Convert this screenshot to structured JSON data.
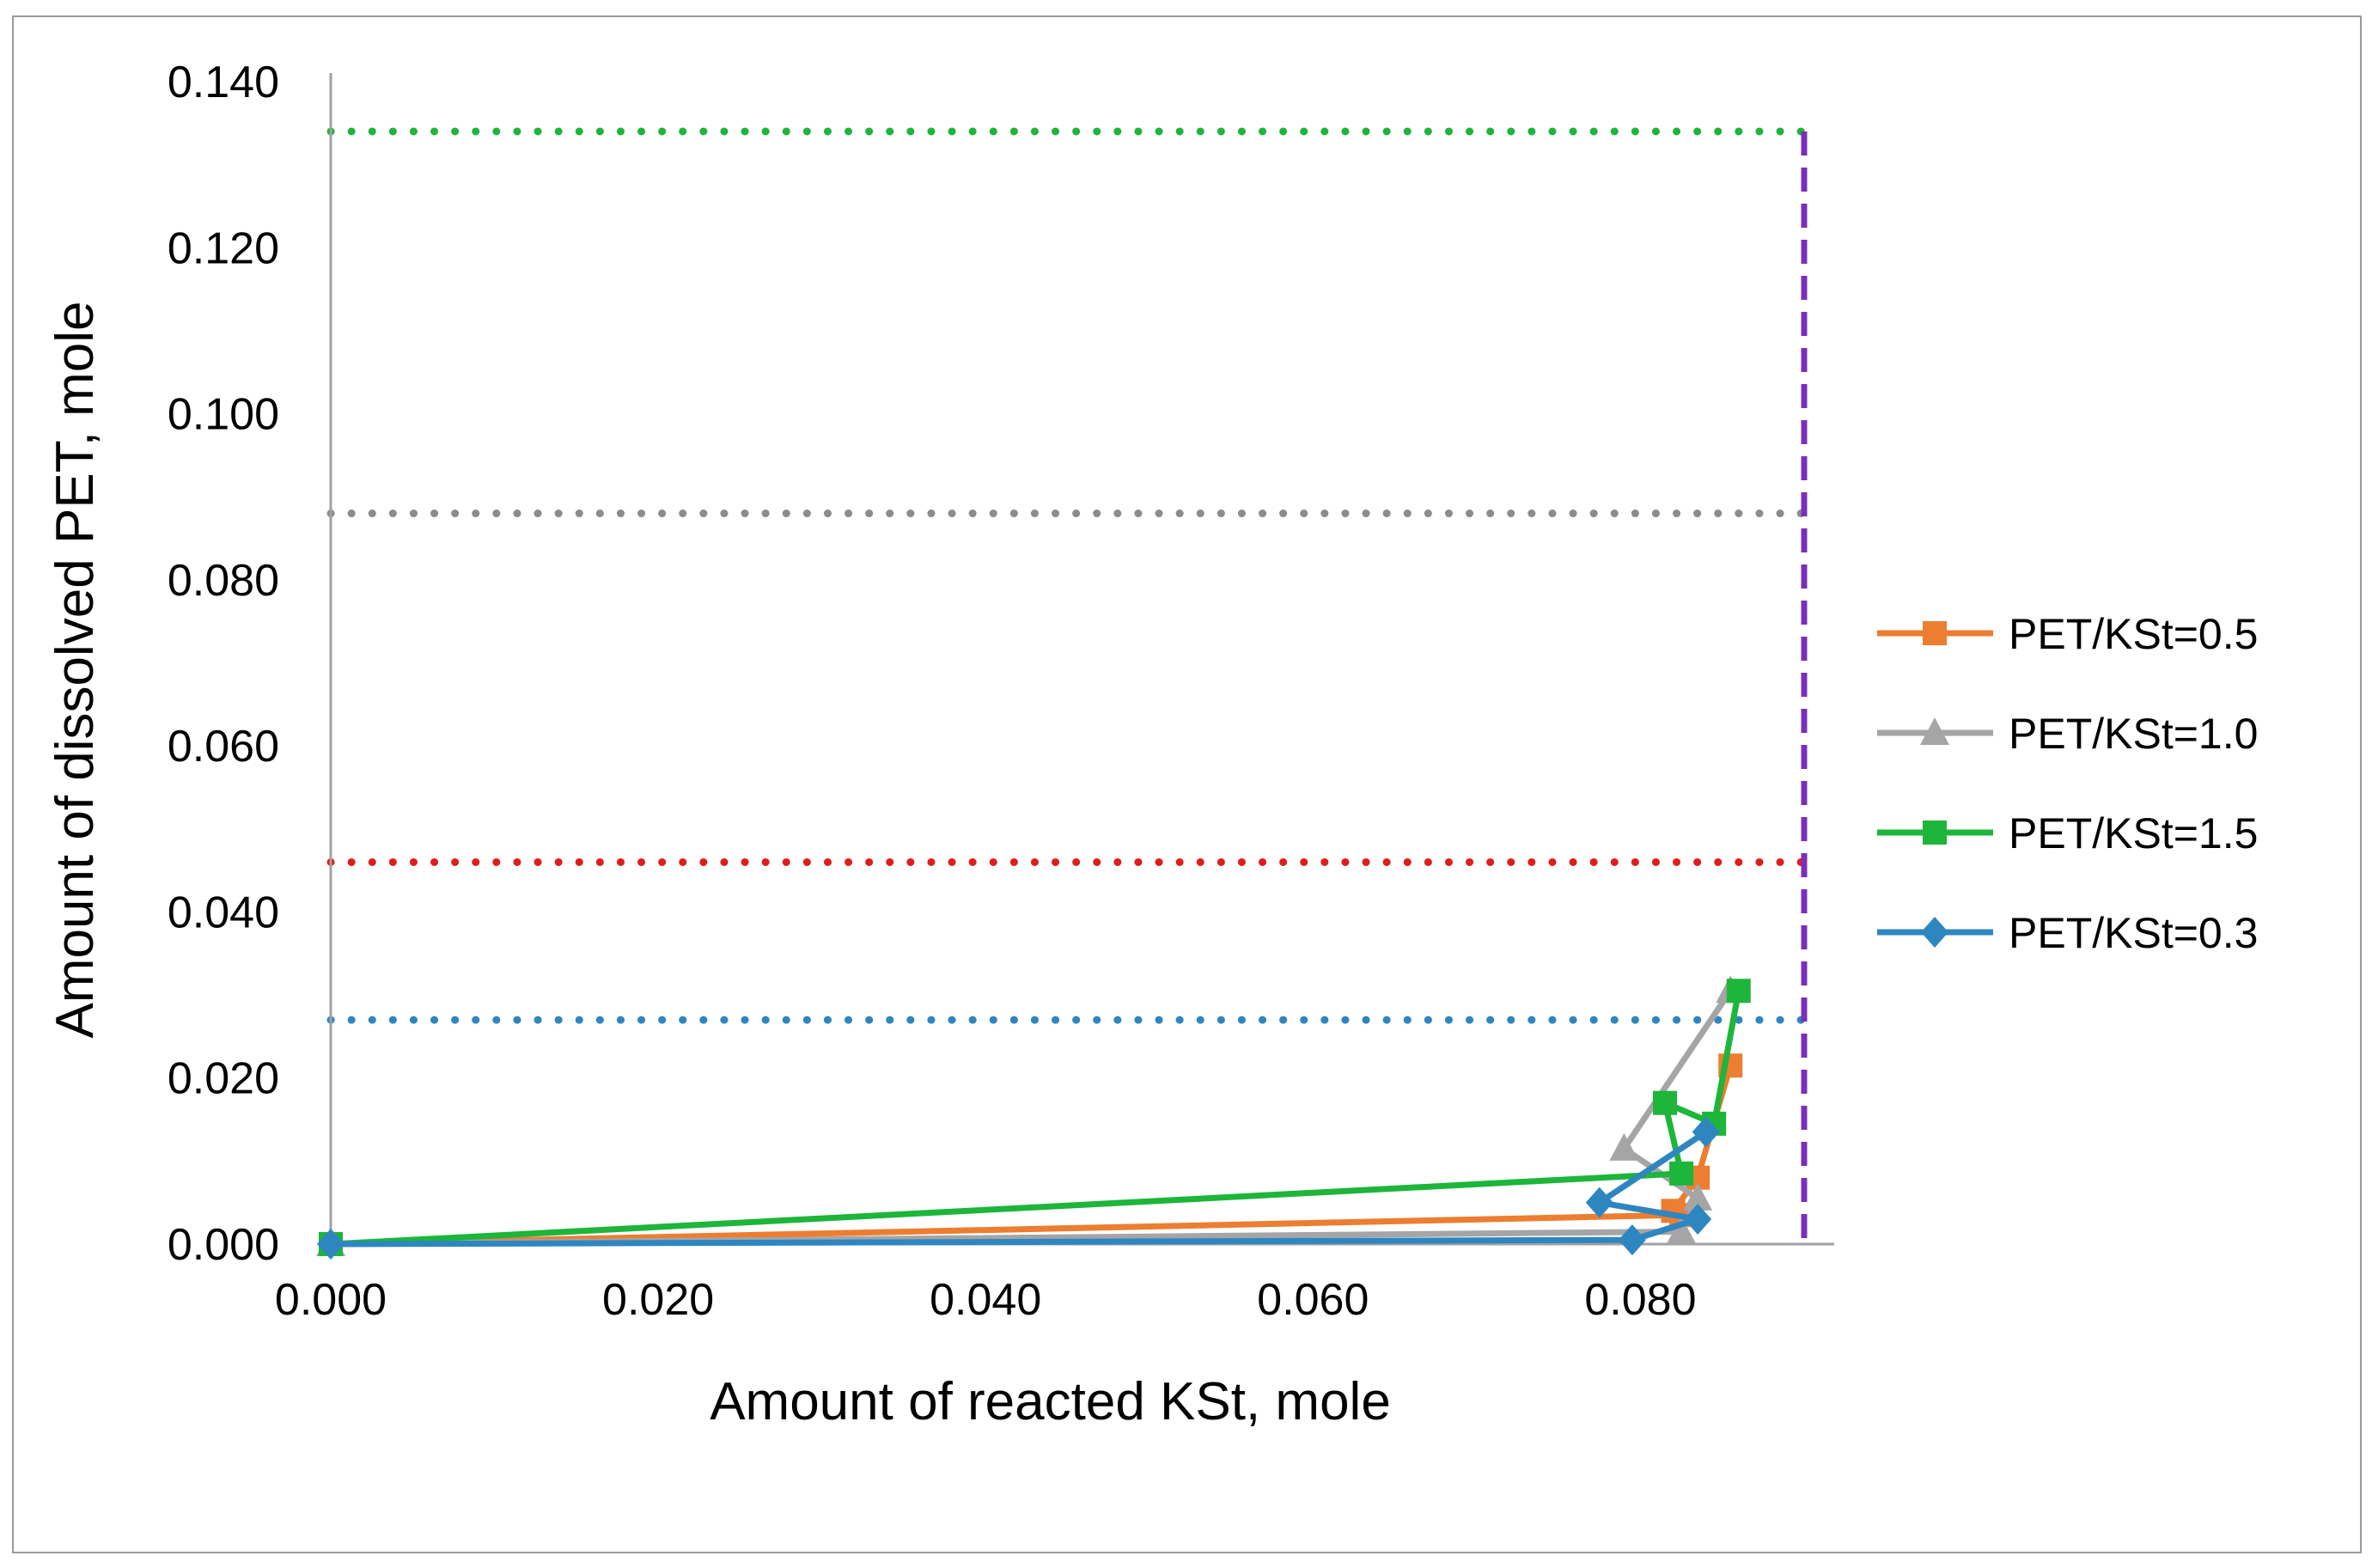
{
  "chart_data": {
    "type": "line",
    "title": "",
    "xlabel": "Amount of reacted KSt, mole",
    "ylabel": "Amount of dissolved PET, mole",
    "xlim": [
      0,
      0.09
    ],
    "ylim": [
      0,
      0.14
    ],
    "xticks": [
      "0.000",
      "0.020",
      "0.040",
      "0.060",
      "0.080"
    ],
    "xtick_values": [
      0,
      0.02,
      0.04,
      0.06,
      0.08
    ],
    "yticks": [
      "0.000",
      "0.020",
      "0.040",
      "0.060",
      "0.080",
      "0.100",
      "0.120",
      "0.140"
    ],
    "ytick_values": [
      0,
      0.02,
      0.04,
      0.06,
      0.08,
      0.1,
      0.12,
      0.14
    ],
    "grid": false,
    "legend_position": "right",
    "series": [
      {
        "name": "PET/KSt=0.5",
        "color": "#ED7D31",
        "marker": "square",
        "x": [
          0,
          0.0825,
          0.082,
          0.0835,
          0.0855
        ],
        "y": [
          0,
          0.0035,
          0.004,
          0.008,
          0.0215
        ]
      },
      {
        "name": "PET/KSt=1.0",
        "color": "#A5A5A5",
        "marker": "triangle",
        "x": [
          0,
          0.0825,
          0.0835,
          0.079,
          0.0855
        ],
        "y": [
          0,
          0.0015,
          0.0055,
          0.0115,
          0.0305
        ]
      },
      {
        "name": "PET/KSt=1.5",
        "color": "#1DB53A",
        "marker": "square",
        "x": [
          0,
          0.0825,
          0.0815,
          0.0845,
          0.086
        ],
        "y": [
          0,
          0.0085,
          0.017,
          0.0145,
          0.0305
        ]
      },
      {
        "name": "PET/KSt=0.3",
        "color": "#2E86C1",
        "marker": "diamond",
        "x": [
          0,
          0.0795,
          0.0835,
          0.0775,
          0.084
        ],
        "y": [
          0,
          0.0005,
          0.003,
          0.005,
          0.0135
        ]
      }
    ],
    "reference_lines": [
      {
        "orientation": "horizontal",
        "y": 0.134,
        "color": "#1DB53A",
        "style": "dotted",
        "x_end": 0.09
      },
      {
        "orientation": "horizontal",
        "y": 0.088,
        "color": "#8C8C8C",
        "style": "dotted",
        "x_end": 0.09
      },
      {
        "orientation": "horizontal",
        "y": 0.046,
        "color": "#E01C1C",
        "style": "dotted",
        "x_end": 0.09
      },
      {
        "orientation": "horizontal",
        "y": 0.027,
        "color": "#2E86C1",
        "style": "dotted",
        "x_end": 0.09
      },
      {
        "orientation": "vertical",
        "x": 0.09,
        "color": "#7B2FB8",
        "style": "dashed",
        "y_end": 0.134
      }
    ]
  }
}
